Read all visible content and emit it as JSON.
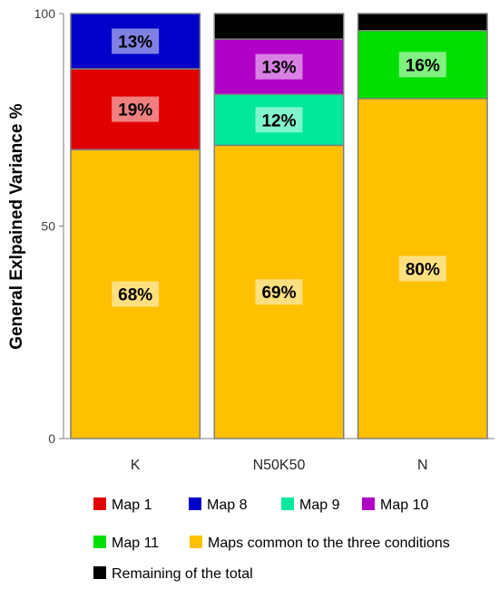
{
  "chart_data": {
    "type": "bar",
    "stacked": true,
    "ylabel": "General Exlpained Variance %",
    "xlabel": "",
    "ylim": [
      0,
      100
    ],
    "yticks": [
      "0",
      "50",
      "100"
    ],
    "categories": [
      "K",
      "N50K50",
      "N"
    ],
    "series": [
      {
        "name": "Maps common to the three conditions",
        "color": "#FFC000",
        "values": [
          68,
          69,
          80
        ],
        "labels": [
          "68%",
          "69%",
          "80%"
        ]
      },
      {
        "name": "Map 1",
        "color": "#E00000",
        "values": [
          19,
          0,
          0
        ],
        "labels": [
          "19%",
          "",
          ""
        ]
      },
      {
        "name": "Map 9",
        "color": "#00E89A",
        "values": [
          0,
          12,
          0
        ],
        "labels": [
          "",
          "12%",
          ""
        ]
      },
      {
        "name": "Map 11",
        "color": "#00E000",
        "values": [
          0,
          0,
          16
        ],
        "labels": [
          "",
          "",
          "16%"
        ]
      },
      {
        "name": "Map 8",
        "color": "#0000C8",
        "values": [
          13,
          0,
          0
        ],
        "labels": [
          "13%",
          "",
          ""
        ]
      },
      {
        "name": "Map 10",
        "color": "#B000C8",
        "values": [
          0,
          13,
          0
        ],
        "labels": [
          "",
          "13%",
          ""
        ]
      },
      {
        "name": "Remaining of the total",
        "color": "#000000",
        "values": [
          0,
          6,
          4
        ],
        "labels": [
          "",
          "",
          ""
        ]
      }
    ],
    "legend": {
      "placement": "bottom",
      "rows": [
        [
          "Map 1",
          "Map 8",
          "Map 9",
          "Map 10"
        ],
        [
          "Map 11",
          "Maps common to the three conditions"
        ],
        [
          "Remaining of the total"
        ]
      ]
    }
  }
}
